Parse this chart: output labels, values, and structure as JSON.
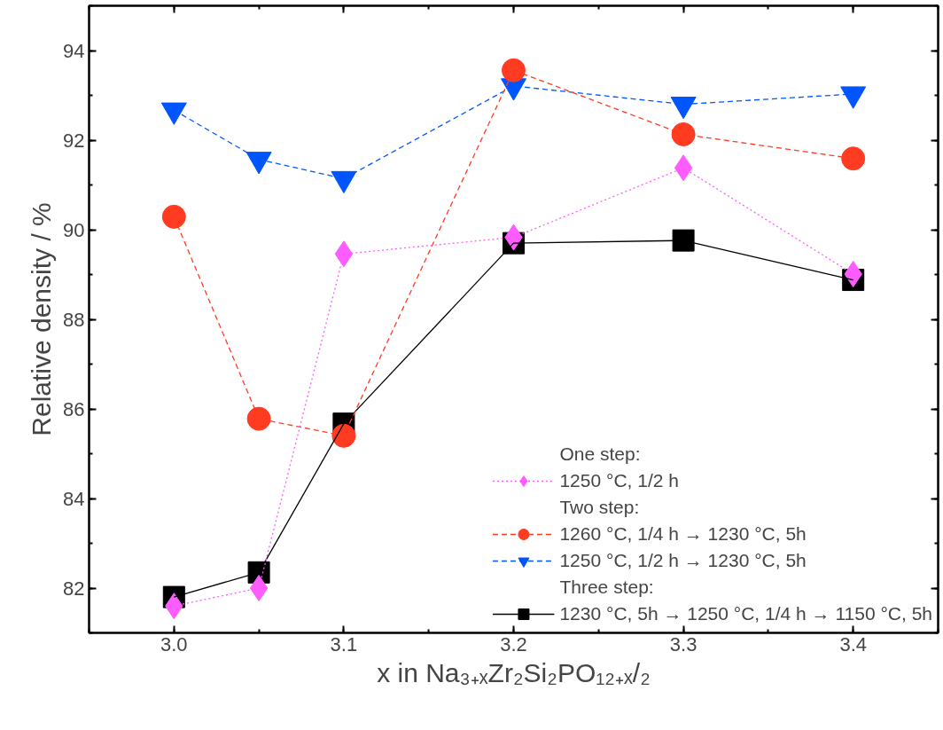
{
  "chart_data": {
    "type": "line",
    "xlabel": "x in Na₃₊ₓZr₂Si₂PO₁₂₊ₓ/₂",
    "ylabel": "Relative density / %",
    "x": [
      3.0,
      3.05,
      3.1,
      3.2,
      3.3,
      3.4
    ],
    "series": [
      {
        "name": "1250 °C, 1/2 h",
        "color": "#ff5cff",
        "marker": "diamond",
        "line_style": "dotted",
        "values": [
          81.6,
          82.0,
          89.46,
          89.83,
          91.38,
          89.01
        ]
      },
      {
        "name": "1260 °C, 1/4 h → 1230 °C, 5h",
        "color": "#ff3b22",
        "marker": "circle",
        "line_style": "dashed",
        "values": [
          90.29,
          85.78,
          85.4,
          93.56,
          92.13,
          91.59
        ]
      },
      {
        "name": "1250 °C, 1/2 h → 1230 °C, 5h",
        "color": "#0055ff",
        "marker": "triangle",
        "line_style": "dashed",
        "values": [
          92.67,
          91.57,
          91.14,
          93.21,
          92.8,
          93.03
        ]
      },
      {
        "name": "1230 °C, 5h → 1250 °C, 1/4 h → 1150 °C, 5h",
        "color": "#000000",
        "marker": "square",
        "line_style": "solid",
        "values": [
          81.8,
          82.35,
          85.67,
          89.7,
          89.76,
          88.88
        ]
      }
    ],
    "annotations": [
      "One step:",
      "Two step:",
      "Three step:"
    ],
    "xlim": [
      2.95,
      3.45
    ],
    "ylim": [
      81,
      95
    ],
    "xticks": [
      {
        "value": 3.0,
        "label": "3.0"
      },
      {
        "value": 3.1,
        "label": "3.1"
      },
      {
        "value": 3.2,
        "label": "3.2"
      },
      {
        "value": 3.3,
        "label": "3.3"
      },
      {
        "value": 3.4,
        "label": "3.4"
      }
    ],
    "yticks": [
      82,
      84,
      86,
      88,
      90,
      92,
      94
    ],
    "legend": "bottom right",
    "grid": false
  }
}
